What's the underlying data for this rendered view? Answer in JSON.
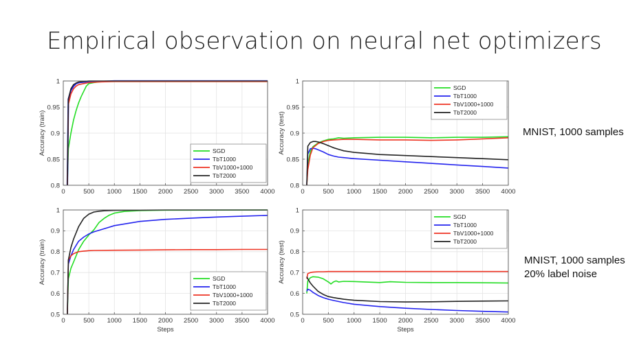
{
  "slide": {
    "title": "Empirical observation on neural net optimizers",
    "notes": {
      "row1": "MNIST, 1000 samples",
      "row2_line1": "MNIST, 1000 samples",
      "row2_line2": "20% label noise"
    }
  },
  "chart_data": [
    {
      "id": "p1",
      "type": "line",
      "title": "",
      "xlabel": "",
      "ylabel": "Accuracy (train)",
      "xlim": [
        0,
        4000
      ],
      "ylim": [
        0.8,
        1.0
      ],
      "xticks": [
        0,
        500,
        1000,
        1500,
        2000,
        2500,
        3000,
        3500,
        4000
      ],
      "yticks": [
        0.8,
        0.85,
        0.9,
        0.95,
        1.0
      ],
      "ytick_labels": [
        "0.8",
        "0.85",
        "0.9",
        "0.95",
        "1"
      ],
      "grid": true,
      "legend": "bottom-right",
      "series": [
        {
          "name": "SGD",
          "color": "#22dd22",
          "width": 1.6,
          "x": [
            80,
            100,
            150,
            200,
            250,
            300,
            350,
            400,
            450,
            500,
            600,
            700,
            800,
            1000,
            4000
          ],
          "y": [
            0.8,
            0.87,
            0.9,
            0.925,
            0.943,
            0.958,
            0.97,
            0.98,
            0.99,
            0.995,
            0.997,
            0.998,
            0.999,
            0.999,
            0.999
          ]
        },
        {
          "name": "TbT1000",
          "color": "#2222ee",
          "width": 2.2,
          "x": [
            80,
            100,
            150,
            200,
            250,
            300,
            400,
            500,
            700,
            1000,
            4000
          ],
          "y": [
            0.8,
            0.965,
            0.982,
            0.99,
            0.995,
            0.997,
            0.998,
            0.999,
            0.999,
            1.0,
            1.0
          ]
        },
        {
          "name": "TbV1000+1000",
          "color": "#ee3322",
          "width": 1.6,
          "x": [
            80,
            100,
            150,
            200,
            250,
            300,
            400,
            500,
            700,
            1000,
            4000
          ],
          "y": [
            0.8,
            0.955,
            0.975,
            0.985,
            0.99,
            0.993,
            0.995,
            0.997,
            0.998,
            0.999,
            0.999
          ]
        },
        {
          "name": "TbT2000",
          "color": "#222222",
          "width": 1.6,
          "x": [
            80,
            100,
            150,
            200,
            250,
            300,
            400,
            500,
            700,
            1000,
            4000
          ],
          "y": [
            0.8,
            0.965,
            0.985,
            0.993,
            0.996,
            0.998,
            0.999,
            1.0,
            1.0,
            1.0,
            1.0
          ]
        }
      ]
    },
    {
      "id": "p2",
      "type": "line",
      "title": "",
      "xlabel": "",
      "ylabel": "Accuracy (test)",
      "xlim": [
        0,
        4000
      ],
      "ylim": [
        0.8,
        1.0
      ],
      "xticks": [
        0,
        500,
        1000,
        1500,
        2000,
        2500,
        3000,
        3500,
        4000
      ],
      "yticks": [
        0.8,
        0.85,
        0.9,
        0.95,
        1.0
      ],
      "ytick_labels": [
        "0.8",
        "0.85",
        "0.9",
        "0.95",
        "1"
      ],
      "grid": true,
      "legend": "top-right",
      "series": [
        {
          "name": "SGD",
          "color": "#22dd22",
          "width": 1.6,
          "x": [
            80,
            100,
            150,
            200,
            300,
            400,
            500,
            600,
            700,
            800,
            1000,
            1500,
            2000,
            2500,
            3000,
            3500,
            4000
          ],
          "y": [
            0.8,
            0.84,
            0.865,
            0.874,
            0.881,
            0.885,
            0.888,
            0.889,
            0.891,
            0.89,
            0.891,
            0.892,
            0.892,
            0.891,
            0.892,
            0.892,
            0.893
          ]
        },
        {
          "name": "TbT1000",
          "color": "#2222ee",
          "width": 1.6,
          "x": [
            80,
            100,
            150,
            200,
            250,
            300,
            400,
            500,
            600,
            700,
            800,
            1000,
            1500,
            2000,
            2500,
            3000,
            3500,
            4000
          ],
          "y": [
            0.8,
            0.86,
            0.87,
            0.871,
            0.87,
            0.868,
            0.864,
            0.859,
            0.856,
            0.854,
            0.853,
            0.851,
            0.848,
            0.845,
            0.842,
            0.839,
            0.836,
            0.833
          ]
        },
        {
          "name": "TbV1000+1000",
          "color": "#ee3322",
          "width": 1.6,
          "x": [
            80,
            100,
            150,
            200,
            300,
            400,
            500,
            600,
            800,
            1000,
            1500,
            2000,
            2500,
            3000,
            3500,
            4000
          ],
          "y": [
            0.8,
            0.83,
            0.858,
            0.872,
            0.88,
            0.884,
            0.886,
            0.887,
            0.888,
            0.888,
            0.887,
            0.887,
            0.886,
            0.887,
            0.889,
            0.891
          ]
        },
        {
          "name": "TbT2000",
          "color": "#222222",
          "width": 1.6,
          "x": [
            80,
            100,
            150,
            200,
            250,
            300,
            400,
            500,
            600,
            700,
            800,
            1000,
            1500,
            2000,
            2500,
            3000,
            3500,
            4000
          ],
          "y": [
            0.8,
            0.875,
            0.882,
            0.884,
            0.884,
            0.883,
            0.88,
            0.876,
            0.872,
            0.869,
            0.866,
            0.863,
            0.859,
            0.857,
            0.855,
            0.853,
            0.851,
            0.849
          ]
        }
      ]
    },
    {
      "id": "p3",
      "type": "line",
      "title": "",
      "xlabel": "Steps",
      "ylabel": "Accuracy (train)",
      "xlim": [
        0,
        4000
      ],
      "ylim": [
        0.5,
        1.0
      ],
      "xticks": [
        0,
        500,
        1000,
        1500,
        2000,
        2500,
        3000,
        3500,
        4000
      ],
      "yticks": [
        0.5,
        0.6,
        0.7,
        0.8,
        0.9,
        1.0
      ],
      "ytick_labels": [
        "0.5",
        "0.6",
        "0.7",
        "0.8",
        "0.9",
        "1"
      ],
      "grid": true,
      "legend": "bottom-right",
      "series": [
        {
          "name": "SGD",
          "color": "#22dd22",
          "width": 1.6,
          "x": [
            80,
            100,
            150,
            200,
            300,
            400,
            500,
            600,
            700,
            800,
            900,
            1000,
            1200,
            1500,
            2000,
            4000
          ],
          "y": [
            0.5,
            0.67,
            0.72,
            0.75,
            0.81,
            0.85,
            0.88,
            0.905,
            0.94,
            0.96,
            0.975,
            0.985,
            0.993,
            0.997,
            0.999,
            1.0
          ]
        },
        {
          "name": "TbT1000",
          "color": "#2222ee",
          "width": 1.6,
          "x": [
            80,
            100,
            150,
            200,
            300,
            400,
            500,
            600,
            800,
            1000,
            1500,
            2000,
            2500,
            3000,
            3500,
            4000
          ],
          "y": [
            0.5,
            0.74,
            0.78,
            0.81,
            0.85,
            0.87,
            0.885,
            0.895,
            0.91,
            0.925,
            0.945,
            0.955,
            0.961,
            0.966,
            0.97,
            0.974
          ]
        },
        {
          "name": "TbV1000+1000",
          "color": "#ee3322",
          "width": 1.6,
          "x": [
            80,
            100,
            150,
            200,
            300,
            400,
            500,
            600,
            1000,
            1500,
            2000,
            2500,
            3000,
            3500,
            4000
          ],
          "y": [
            0.5,
            0.76,
            0.78,
            0.79,
            0.8,
            0.803,
            0.805,
            0.806,
            0.807,
            0.808,
            0.809,
            0.81,
            0.81,
            0.811,
            0.811
          ]
        },
        {
          "name": "TbT2000",
          "color": "#222222",
          "width": 1.6,
          "x": [
            80,
            100,
            150,
            200,
            300,
            400,
            500,
            600,
            700,
            800,
            1000,
            1500,
            2000,
            4000
          ],
          "y": [
            0.5,
            0.76,
            0.82,
            0.86,
            0.92,
            0.96,
            0.98,
            0.99,
            0.994,
            0.996,
            0.998,
            0.999,
            1.0,
            1.0
          ]
        }
      ]
    },
    {
      "id": "p4",
      "type": "line",
      "title": "",
      "xlabel": "Steps",
      "ylabel": "Accuracy (test)",
      "xlim": [
        0,
        4000
      ],
      "ylim": [
        0.5,
        1.0
      ],
      "xticks": [
        0,
        500,
        1000,
        1500,
        2000,
        2500,
        3000,
        3500,
        4000
      ],
      "yticks": [
        0.5,
        0.6,
        0.7,
        0.8,
        0.9,
        1.0
      ],
      "ytick_labels": [
        "0.5",
        "0.6",
        "0.7",
        "0.8",
        "0.9",
        "1"
      ],
      "grid": true,
      "legend": "top-right",
      "series": [
        {
          "name": "SGD",
          "color": "#22dd22",
          "width": 1.6,
          "x": [
            80,
            100,
            150,
            200,
            300,
            400,
            500,
            550,
            600,
            650,
            700,
            800,
            1000,
            1500,
            1700,
            2000,
            2500,
            3000,
            3500,
            4000
          ],
          "y": [
            0.6,
            0.66,
            0.675,
            0.68,
            0.678,
            0.67,
            0.655,
            0.645,
            0.655,
            0.66,
            0.655,
            0.658,
            0.657,
            0.652,
            0.656,
            0.653,
            0.652,
            0.652,
            0.651,
            0.65
          ]
        },
        {
          "name": "TbT1000",
          "color": "#2222ee",
          "width": 1.6,
          "x": [
            80,
            100,
            150,
            200,
            300,
            400,
            500,
            600,
            800,
            1000,
            1500,
            2000,
            2500,
            3000,
            3500,
            4000
          ],
          "y": [
            0.61,
            0.62,
            0.615,
            0.605,
            0.59,
            0.58,
            0.572,
            0.566,
            0.556,
            0.548,
            0.537,
            0.529,
            0.523,
            0.518,
            0.514,
            0.511
          ]
        },
        {
          "name": "TbV1000+1000",
          "color": "#ee3322",
          "width": 1.6,
          "x": [
            80,
            100,
            150,
            200,
            300,
            400,
            500,
            700,
            1000,
            1500,
            2000,
            2500,
            3000,
            3500,
            4000
          ],
          "y": [
            0.67,
            0.695,
            0.7,
            0.702,
            0.704,
            0.704,
            0.705,
            0.705,
            0.705,
            0.705,
            0.705,
            0.705,
            0.705,
            0.705,
            0.705
          ]
        },
        {
          "name": "TbT2000",
          "color": "#222222",
          "width": 1.6,
          "x": [
            80,
            100,
            150,
            200,
            300,
            400,
            500,
            600,
            700,
            800,
            1000,
            1500,
            2000,
            2500,
            3000,
            3500,
            4000
          ],
          "y": [
            0.68,
            0.67,
            0.65,
            0.635,
            0.61,
            0.595,
            0.585,
            0.58,
            0.576,
            0.572,
            0.567,
            0.561,
            0.559,
            0.56,
            0.562,
            0.563,
            0.564
          ]
        }
      ]
    }
  ]
}
